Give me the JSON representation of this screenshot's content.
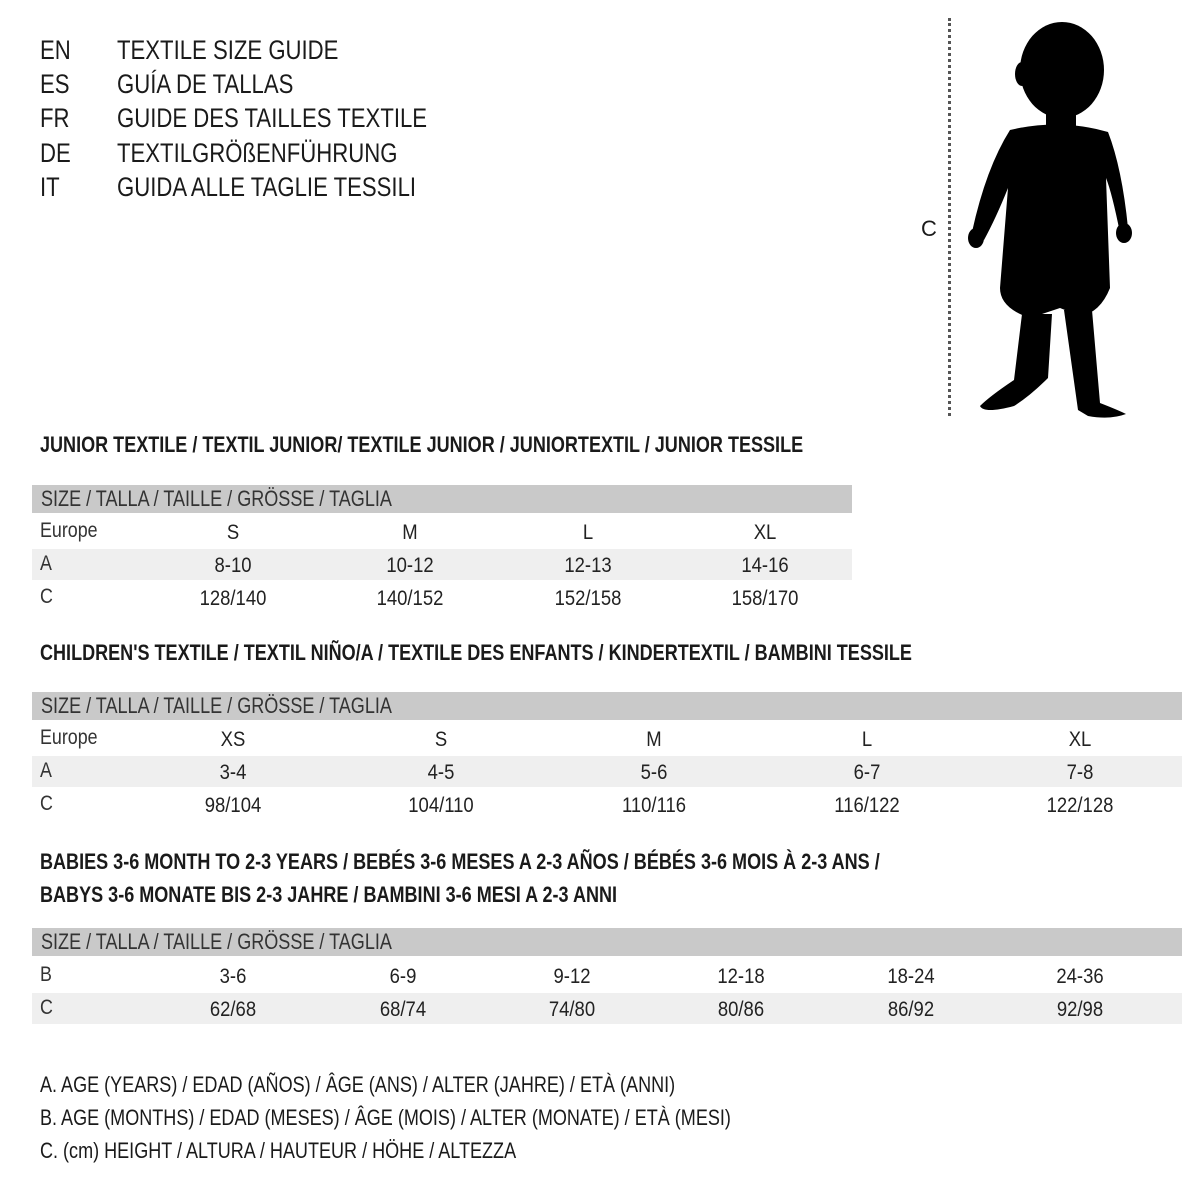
{
  "title_lines": [
    {
      "code": "EN",
      "text": "TEXTILE SIZE GUIDE"
    },
    {
      "code": "ES",
      "text": "GUÍA DE TALLAS"
    },
    {
      "code": "FR",
      "text": "GUIDE DES TAILLES TEXTILE"
    },
    {
      "code": "DE",
      "text": "TEXTILGRÖßENFÜHRUNG"
    },
    {
      "code": "IT",
      "text": "GUIDA ALLE TAGLIE TESSILI"
    }
  ],
  "figure": {
    "measure_label": "C",
    "icon": "child-silhouette-icon"
  },
  "colors": {
    "header_bar": "#c9c9c9",
    "stripe": "#efefef",
    "text": "#1a1a1a"
  },
  "tables": [
    {
      "heading": [
        "JUNIOR TEXTILE / TEXTIL JUNIOR/ TEXTILE JUNIOR / JUNIORTEXTIL / JUNIOR TESSILE"
      ],
      "header": "SIZE / TALLA / TAILLE / GRÖSSE / TAGLIA",
      "rows": [
        {
          "label": "Europe",
          "values": [
            "S",
            "M",
            "L",
            "XL"
          ]
        },
        {
          "label": "A",
          "values": [
            "8-10",
            "10-12",
            "12-13",
            "14-16"
          ]
        },
        {
          "label": "C",
          "values": [
            "128/140",
            "140/152",
            "152/158",
            "158/170"
          ]
        }
      ]
    },
    {
      "heading": [
        "CHILDREN'S TEXTILE / TEXTIL NIÑO/A / TEXTILE DES ENFANTS / KINDERTEXTIL / BAMBINI TESSILE"
      ],
      "header": "SIZE / TALLA / TAILLE / GRÖSSE / TAGLIA",
      "rows": [
        {
          "label": "Europe",
          "values": [
            "XS",
            "S",
            "M",
            "L",
            "XL"
          ]
        },
        {
          "label": "A",
          "values": [
            "3-4",
            "4-5",
            "5-6",
            "6-7",
            "7-8"
          ]
        },
        {
          "label": "C",
          "values": [
            "98/104",
            "104/110",
            "110/116",
            "116/122",
            "122/128"
          ]
        }
      ]
    },
    {
      "heading": [
        "BABIES 3-6 MONTH TO 2-3 YEARS / BEBÉS 3-6 MESES A 2-3 AÑOS / BÉBÉS 3-6 MOIS À 2-3 ANS /",
        "BABYS 3-6 MONATE BIS 2-3 JAHRE / BAMBINI 3-6 MESI A 2-3 ANNI"
      ],
      "header": "SIZE / TALLA / TAILLE / GRÖSSE / TAGLIA",
      "rows": [
        {
          "label": "B",
          "values": [
            "3-6",
            "6-9",
            "9-12",
            "12-18",
            "18-24",
            "24-36"
          ]
        },
        {
          "label": "C",
          "values": [
            "62/68",
            "68/74",
            "74/80",
            "80/86",
            "86/92",
            "92/98"
          ]
        }
      ]
    }
  ],
  "notes": [
    "A. AGE (YEARS) / EDAD (AÑOS) / ÂGE (ANS) / ALTER (JAHRE) / ETÀ (ANNI)",
    "B. AGE (MONTHS) / EDAD (MESES) / ÂGE (MOIS) / ALTER (MONATE) / ETÀ (MESI)",
    "C. (cm) HEIGHT / ALTURA / HAUTEUR / HÖHE / ALTEZZA"
  ]
}
